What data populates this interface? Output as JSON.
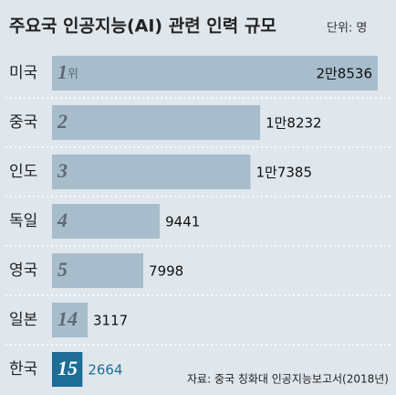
{
  "chart_data": {
    "type": "bar",
    "orientation": "horizontal",
    "title": "주요국 인공지능(AI) 관련 인력 규모",
    "subtitle": "단위: 명",
    "categories": [
      "미국",
      "중국",
      "인도",
      "독일",
      "영국",
      "일본",
      "한국"
    ],
    "ranks": [
      1,
      2,
      3,
      4,
      5,
      14,
      15
    ],
    "rank_suffix": "위",
    "values": [
      28536,
      18232,
      17385,
      9441,
      7998,
      3117,
      2664
    ],
    "value_labels": [
      "2만8536",
      "1만8232",
      "1만7385",
      "9441",
      "7998",
      "3117",
      "2664"
    ],
    "colors": [
      "#a8bdcc",
      "#a8bdcc",
      "#a8bdcc",
      "#a8bdcc",
      "#a8bdcc",
      "#a8bdcc",
      "#1d6d96"
    ],
    "source": "자료: 중국 칭화대 인공지능보고서(2018년)"
  }
}
